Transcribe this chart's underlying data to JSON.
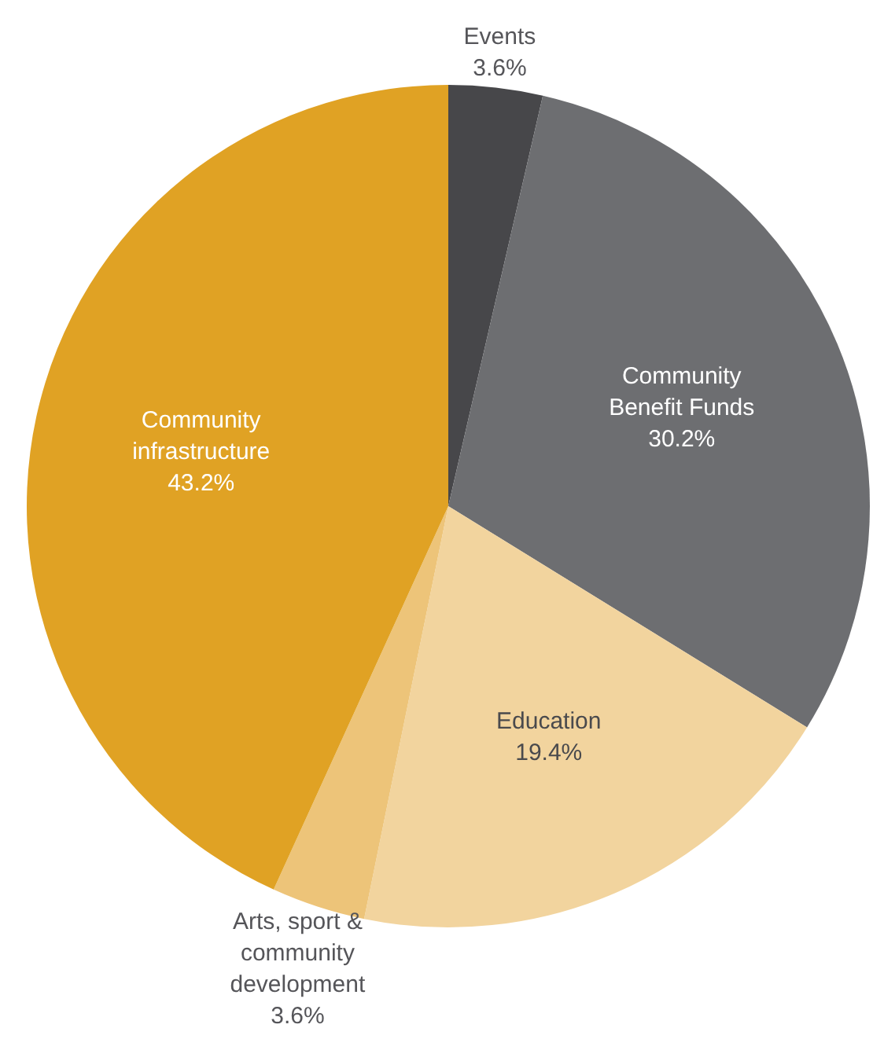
{
  "chart_data": {
    "type": "pie",
    "categories": [
      "Events",
      "Community Benefit Funds",
      "Education",
      "Arts, sport & community development",
      "Community infrastructure"
    ],
    "values": [
      3.6,
      30.2,
      19.4,
      3.6,
      43.2
    ],
    "colors": [
      "#47474a",
      "#6d6e71",
      "#f2d49e",
      "#edc479",
      "#e0a224"
    ],
    "value_labels": [
      "3.6%",
      "30.2%",
      "19.4%",
      "3.6%",
      "43.2%"
    ]
  }
}
